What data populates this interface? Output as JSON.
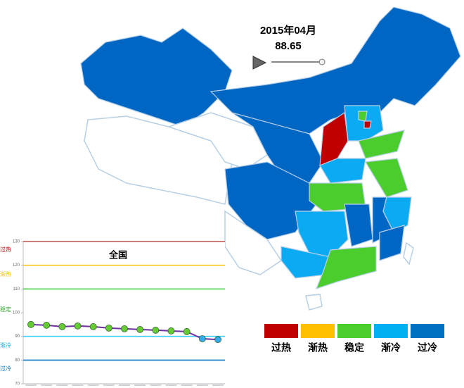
{
  "header": {
    "period": "2015年04月",
    "value": 88.65
  },
  "legend": [
    {
      "label": "过热",
      "color": "#c00000"
    },
    {
      "label": "渐热",
      "color": "#ffc000"
    },
    {
      "label": "稳定",
      "color": "#4ccd2e"
    },
    {
      "label": "渐冷",
      "color": "#00b0f0"
    },
    {
      "label": "过冷",
      "color": "#0070c0"
    }
  ],
  "chart_data": {
    "type": "line",
    "title": "全国",
    "categories": [
      null,
      null,
      null,
      null,
      null,
      null,
      null,
      null,
      null,
      null,
      null,
      null,
      null
    ],
    "series": [
      {
        "name": "全国",
        "color": "#7030a0",
        "marker_color": "#66cc33",
        "values": [
          95.0,
          94.7,
          94.1,
          94.4,
          94.1,
          93.5,
          93.2,
          92.9,
          92.6,
          92.3,
          92.0,
          89.0,
          88.65
        ]
      }
    ],
    "ylim": [
      70,
      130
    ],
    "yticks": [
      70,
      80,
      90,
      100,
      110,
      120,
      130
    ],
    "thresholds": [
      {
        "value": 130,
        "color": "#c0504d"
      },
      {
        "value": 120,
        "color": "#ffc000"
      },
      {
        "value": 110,
        "color": "#33cc33"
      },
      {
        "value": 90,
        "color": "#33ccff"
      },
      {
        "value": 80,
        "color": "#0070c0"
      }
    ],
    "zones": [
      {
        "label": "过热",
        "color": "#c00000"
      },
      {
        "label": "渐热",
        "color": "#ffc000"
      },
      {
        "label": "稳定",
        "color": "#33aa33"
      },
      {
        "label": "渐冷",
        "color": "#00b0f0"
      },
      {
        "label": "过冷",
        "color": "#0070c0"
      }
    ]
  }
}
